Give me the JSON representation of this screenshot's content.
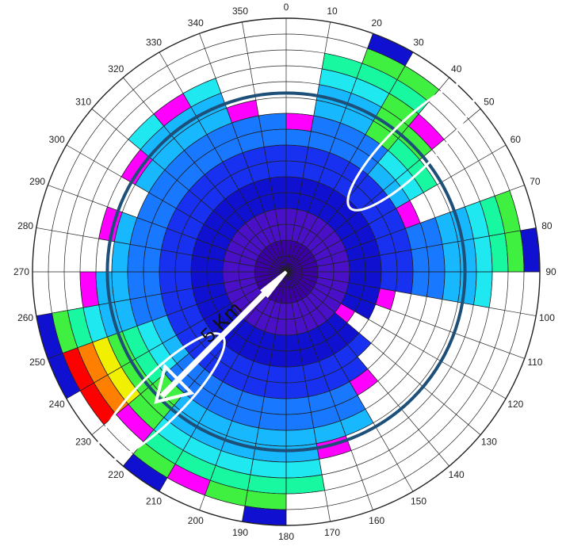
{
  "chart_data": {
    "type": "heatmap",
    "subtype": "polar",
    "direction_bins_deg": 10,
    "ring_count": 16,
    "angle_labels": [
      "0",
      "10",
      "20",
      "30",
      "40",
      "50",
      "60",
      "70",
      "80",
      "90",
      "100",
      "110",
      "120",
      "130",
      "140",
      "150",
      "160",
      "170",
      "180",
      "190",
      "200",
      "210",
      "220",
      "230",
      "240",
      "250",
      "260",
      "270",
      "280",
      "290",
      "300",
      "310",
      "320",
      "330",
      "340",
      "350"
    ],
    "color_scale": [
      "#3b00a8",
      "#4a10c8",
      "#1010d0",
      "#1830f0",
      "#1878ff",
      "#18b8ff",
      "#20e8f0",
      "#18f8a0",
      "#40f040",
      "#f0f000",
      "#ff8000",
      "#ff0000",
      "#ff00ff",
      "#8020e0",
      "#ffffff"
    ],
    "series_extent_rings": [
      10,
      14,
      16,
      15,
      13,
      11,
      9,
      15,
      16,
      13,
      7,
      6,
      5,
      7,
      9,
      11,
      12,
      14,
      16,
      15,
      15,
      16,
      14,
      15,
      16,
      16,
      13,
      11,
      12,
      10,
      12,
      13,
      13,
      13,
      11,
      10
    ],
    "highlight_bins": {
      "northeast": {
        "sectors": [
          3,
          4,
          5
        ],
        "rings": [
          8,
          9,
          10,
          11,
          12,
          13,
          14
        ]
      },
      "southwest": {
        "sectors": [
          22,
          23,
          24
        ],
        "rings": [
          8,
          9,
          10,
          11,
          12,
          13,
          14
        ]
      }
    },
    "annotation": {
      "distance_label": "5 Km",
      "circle_ring_fraction": 0.705
    }
  }
}
